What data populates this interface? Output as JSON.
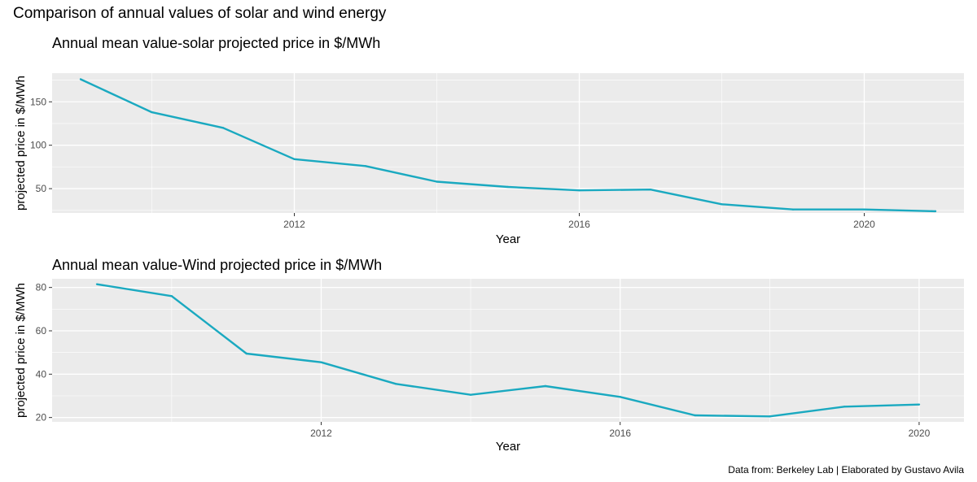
{
  "title": "Comparison of annual values of solar and wind energy",
  "caption": "Data from: Berkeley Lab | Elaborated by Gustavo Avila",
  "colors": {
    "panel_bg": "#ebebeb",
    "grid": "#ffffff",
    "line": "#1aa9c0"
  },
  "chart_data": [
    {
      "type": "line",
      "title": "Annual mean value-solar projected price in $/MWh",
      "xlabel": "Year",
      "ylabel": "projected price in $/MWh",
      "xlim": [
        2008.6,
        2021.4
      ],
      "ylim": [
        22,
        183
      ],
      "xticks": [
        2012,
        2016,
        2020
      ],
      "yticks": [
        50,
        100,
        150
      ],
      "x": [
        2009,
        2010,
        2011,
        2012,
        2013,
        2014,
        2015,
        2016,
        2017,
        2018,
        2019,
        2020,
        2021
      ],
      "y": [
        176,
        138,
        120,
        84,
        76,
        58,
        52,
        48,
        49,
        32,
        26,
        26,
        24
      ],
      "grid": true
    },
    {
      "type": "line",
      "title": "Annual mean value-Wind projected price in $/MWh",
      "xlabel": "Year",
      "ylabel": "projected price in $/MWh",
      "xlim": [
        2008.4,
        2020.6
      ],
      "ylim": [
        18,
        84
      ],
      "xticks": [
        2012,
        2016,
        2020
      ],
      "yticks": [
        20,
        40,
        60,
        80
      ],
      "x": [
        2009,
        2010,
        2011,
        2012,
        2013,
        2014,
        2015,
        2016,
        2017,
        2018,
        2019,
        2020
      ],
      "y": [
        81.5,
        76,
        49.5,
        45.5,
        35.5,
        30.5,
        34.5,
        29.5,
        21,
        20.5,
        25,
        26
      ],
      "grid": true
    }
  ]
}
